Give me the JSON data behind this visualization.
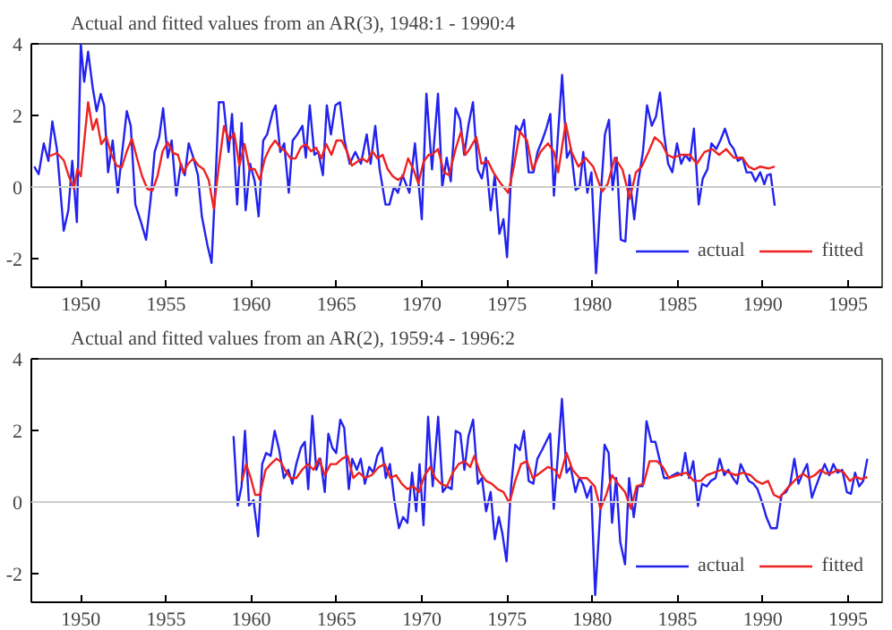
{
  "chart_data": [
    {
      "type": "line",
      "title": "Actual and fitted values from an AR(3), 1948:1 - 1990:4",
      "xlim": [
        1947.1,
        1997
      ],
      "ylim": [
        -2.8,
        4
      ],
      "xticks": [
        1950,
        1955,
        1960,
        1965,
        1970,
        1975,
        1980,
        1985,
        1990,
        1995
      ],
      "yticks": [
        -2,
        0,
        2,
        4
      ],
      "legend": "bottom right",
      "ref_lines": [
        {
          "axis": "y",
          "value": 0,
          "color": "#cccccc"
        }
      ],
      "series": [
        {
          "name": "actual",
          "color": "#2222ee",
          "x": [
            1947.27,
            1947.53,
            1947.83,
            1948.1,
            1948.33,
            1948.6,
            1949.0,
            1949.27,
            1949.5,
            1949.77,
            1950.0,
            1950.2,
            1950.43,
            1950.7,
            1950.93,
            1951.17,
            1951.37,
            1951.6,
            1951.87,
            1952.17,
            1952.43,
            1952.7,
            1952.93,
            1953.2,
            1953.53,
            1953.83,
            1954.1,
            1954.33,
            1954.6,
            1954.83,
            1955.1,
            1955.33,
            1955.6,
            1955.87,
            1956.1,
            1956.33,
            1956.6,
            1956.87,
            1957.1,
            1957.43,
            1957.67,
            1957.87,
            1958.1,
            1958.37,
            1958.67,
            1958.87,
            1959.17,
            1959.43,
            1959.67,
            1959.93,
            1960.2,
            1960.43,
            1960.7,
            1960.93,
            1961.27,
            1961.43,
            1961.7,
            1961.93,
            1962.2,
            1962.43,
            1962.7,
            1963.0,
            1963.2,
            1963.43,
            1963.7,
            1963.93,
            1964.2,
            1964.43,
            1964.67,
            1964.93,
            1965.2,
            1965.47,
            1965.77,
            1966.1,
            1966.43,
            1966.77,
            1967.0,
            1967.27,
            1967.53,
            1967.87,
            1968.1,
            1968.37,
            1968.6,
            1968.87,
            1969.27,
            1969.6,
            1970.0,
            1970.27,
            1970.6,
            1970.95,
            1971.2,
            1971.46,
            1971.7,
            1971.98,
            1972.25,
            1972.49,
            1972.73,
            1973.0,
            1973.28,
            1973.52,
            1973.76,
            1974.04,
            1974.28,
            1974.55,
            1974.79,
            1975.0,
            1975.24,
            1975.52,
            1975.76,
            1976.0,
            1976.27,
            1976.55,
            1976.79,
            1977.06,
            1977.3,
            1977.54,
            1977.75,
            1977.99,
            1978.23,
            1978.51,
            1978.75,
            1979.02,
            1979.26,
            1979.47,
            1979.71,
            1979.95,
            1980.22,
            1980.46,
            1980.74,
            1980.98,
            1981.19,
            1981.43,
            1981.67,
            1981.94,
            1982.18,
            1982.46,
            1982.7,
            1982.97,
            1983.21,
            1983.49,
            1983.73,
            1983.97,
            1984.21,
            1984.45,
            1984.69,
            1984.97,
            1985.21,
            1985.45,
            1985.72,
            1985.96,
            1986.24,
            1986.48,
            1986.75,
            1986.99,
            1987.27,
            1987.51,
            1987.78,
            1988.06,
            1988.3,
            1988.54,
            1988.81,
            1989.05,
            1989.33,
            1989.57,
            1989.85,
            1990.09,
            1990.26,
            1990.46,
            1990.7
          ],
          "values": [
            0.57,
            0.36,
            1.22,
            0.73,
            1.83,
            1.06,
            -1.22,
            -0.65,
            0.73,
            -0.98,
            4.0,
            2.94,
            3.78,
            2.77,
            2.12,
            2.6,
            2.28,
            0.41,
            1.3,
            -0.16,
            0.98,
            2.12,
            1.71,
            -0.49,
            -0.98,
            -1.47,
            -0.33,
            0.98,
            1.39,
            2.2,
            0.82,
            1.3,
            -0.24,
            0.65,
            0.33,
            1.22,
            0.82,
            0.33,
            -0.82,
            -1.63,
            -2.12,
            -0.16,
            2.37,
            2.37,
            0.98,
            2.04,
            -0.49,
            1.79,
            -0.65,
            0.65,
            0.16,
            -0.82,
            1.3,
            1.47,
            2.12,
            2.28,
            0.98,
            1.22,
            -0.16,
            1.3,
            1.47,
            1.71,
            0.82,
            2.28,
            0.9,
            0.98,
            0.33,
            2.28,
            1.47,
            2.28,
            2.37,
            1.3,
            0.65,
            0.98,
            0.65,
            1.47,
            0.65,
            1.71,
            0.49,
            -0.49,
            -0.49,
            0,
            -0.16,
            0.33,
            -0.16,
            1.22,
            -0.9,
            2.61,
            0.49,
            2.61,
            0,
            0.82,
            0.16,
            2.2,
            1.88,
            0.9,
            1.71,
            2.37,
            0.49,
            0.24,
            0.82,
            -0.65,
            0.33,
            -1.31,
            -0.9,
            -1.96,
            0.33,
            1.71,
            1.55,
            1.88,
            0.41,
            0.41,
            0.98,
            1.3,
            1.63,
            2.04,
            -0.24,
            1.47,
            3.13,
            0.82,
            1.06,
            -0.08,
            0,
            0.98,
            -0.16,
            0.41,
            -2.41,
            -0.49,
            1.47,
            1.88,
            -0.08,
            0.82,
            -1.47,
            -1.52,
            0.33,
            -0.9,
            0.16,
            0.98,
            2.28,
            1.71,
            1.96,
            2.64,
            1.47,
            0.65,
            0.41,
            1.22,
            0.65,
            0.9,
            0.73,
            1.63,
            -0.49,
            0.24,
            0.49,
            1.22,
            1.06,
            1.3,
            1.63,
            1.22,
            1.06,
            0.73,
            0.82,
            0.41,
            0.41,
            0.16,
            0.41,
            0.08,
            0.33,
            0.36,
            -0.52
          ]
        },
        {
          "name": "fitted",
          "color": "#ee2222",
          "x": [
            1948.1,
            1948.6,
            1949.0,
            1949.3,
            1949.6,
            1949.8,
            1950.0,
            1950.43,
            1950.7,
            1950.93,
            1951.2,
            1951.5,
            1951.8,
            1952.1,
            1952.4,
            1952.7,
            1953.0,
            1953.3,
            1953.6,
            1953.9,
            1954.2,
            1954.5,
            1954.8,
            1955.1,
            1955.4,
            1955.7,
            1956.0,
            1956.3,
            1956.6,
            1956.9,
            1957.2,
            1957.5,
            1957.8,
            1958.1,
            1958.4,
            1958.7,
            1959.0,
            1959.3,
            1959.6,
            1959.9,
            1960.2,
            1960.5,
            1960.8,
            1961.1,
            1961.4,
            1961.7,
            1962.0,
            1962.3,
            1962.6,
            1962.9,
            1963.2,
            1963.5,
            1963.8,
            1964.1,
            1964.4,
            1964.7,
            1965.0,
            1965.3,
            1965.6,
            1965.9,
            1966.2,
            1966.5,
            1966.8,
            1967.1,
            1967.4,
            1967.7,
            1968.0,
            1968.3,
            1968.6,
            1968.9,
            1969.2,
            1969.5,
            1969.8,
            1970.1,
            1970.4,
            1970.6,
            1970.95,
            1971.3,
            1971.6,
            1971.98,
            1972.3,
            1972.56,
            1972.8,
            1973.2,
            1973.5,
            1973.87,
            1974.2,
            1974.66,
            1975.07,
            1975.4,
            1975.76,
            1976.17,
            1976.5,
            1976.96,
            1977.4,
            1977.75,
            1978.0,
            1978.44,
            1978.78,
            1979.19,
            1979.6,
            1980.05,
            1980.57,
            1980.9,
            1981.32,
            1981.77,
            1982.2,
            1982.56,
            1982.9,
            1983.3,
            1983.66,
            1984.07,
            1984.4,
            1984.76,
            1985.2,
            1985.72,
            1986.13,
            1986.58,
            1987.03,
            1987.44,
            1987.85,
            1988.3,
            1988.81,
            1989.16,
            1989.5,
            1989.85,
            1990.36,
            1990.7
          ],
          "values": [
            0.85,
            0.95,
            0.75,
            0.3,
            -0.05,
            0.5,
            0.3,
            2.37,
            1.6,
            1.9,
            1.2,
            1.4,
            0.9,
            0.6,
            0.55,
            1.0,
            1.35,
            0.8,
            0.3,
            -0.05,
            -0.1,
            0.3,
            1.0,
            1.25,
            0.95,
            0.9,
            0.4,
            0.65,
            0.8,
            0.6,
            0.5,
            0.2,
            -0.6,
            0.6,
            1.7,
            1.3,
            1.5,
            0.6,
            1.2,
            0.5,
            0.5,
            0.2,
            0.8,
            1.1,
            1.3,
            1.1,
            1.0,
            0.8,
            0.8,
            1.1,
            1.2,
            1.0,
            1.1,
            0.8,
            1.2,
            0.9,
            1.3,
            1.3,
            1.0,
            0.6,
            0.7,
            0.8,
            0.7,
            1.0,
            0.8,
            0.9,
            0.5,
            0.3,
            0.2,
            0.3,
            0.8,
            0.5,
            0.1,
            0.7,
            0.9,
            0.9,
            1.06,
            0.41,
            0.33,
            1.06,
            1.55,
            0.9,
            1.06,
            1.39,
            0.65,
            0.73,
            0.41,
            0.08,
            -0.16,
            0.57,
            1.55,
            1.3,
            0.49,
            0.98,
            1.22,
            0.98,
            0.41,
            1.79,
            0.98,
            0.57,
            0.82,
            0.57,
            -0.13,
            0.08,
            0.82,
            0.49,
            -0.33,
            0.41,
            0.57,
            0.98,
            1.39,
            1.22,
            0.9,
            0.82,
            0.9,
            0.9,
            0.65,
            0.98,
            1.06,
            0.9,
            1.06,
            0.82,
            0.82,
            0.57,
            0.49,
            0.57,
            0.52,
            0.57
          ]
        }
      ]
    },
    {
      "type": "line",
      "title": "Actual and fitted values from an AR(2), 1959:4 - 1996:2",
      "xlim": [
        1947.1,
        1997
      ],
      "ylim": [
        -2.8,
        4
      ],
      "xticks": [
        1950,
        1955,
        1960,
        1965,
        1970,
        1975,
        1980,
        1985,
        1990,
        1995
      ],
      "yticks": [
        -2,
        0,
        2,
        4
      ],
      "legend": "bottom right",
      "ref_lines": [
        {
          "axis": "y",
          "value": 0,
          "color": "#cccccc"
        }
      ],
      "series": [
        {
          "name": "actual",
          "color": "#2222ee",
          "x": [
            1958.96,
            1959.2,
            1959.43,
            1959.63,
            1959.87,
            1960.13,
            1960.4,
            1960.64,
            1960.87,
            1961.14,
            1961.37,
            1961.64,
            1961.91,
            1962.17,
            1962.41,
            1962.64,
            1962.91,
            1963.14,
            1963.34,
            1963.58,
            1963.81,
            1964.05,
            1964.31,
            1964.52,
            1964.75,
            1964.98,
            1965.22,
            1965.45,
            1965.72,
            1965.92,
            1966.19,
            1966.42,
            1966.66,
            1966.92,
            1967.16,
            1967.39,
            1967.66,
            1967.89,
            1968.13,
            1968.39,
            1968.66,
            1968.9,
            1969.16,
            1969.43,
            1969.67,
            1969.87,
            1970.1,
            1970.37,
            1970.64,
            1970.96,
            1971.23,
            1971.47,
            1971.75,
            1971.99,
            1972.26,
            1972.5,
            1972.74,
            1973.01,
            1973.29,
            1973.53,
            1973.77,
            1974.04,
            1974.28,
            1974.52,
            1974.73,
            1974.97,
            1975.24,
            1975.48,
            1975.75,
            1975.99,
            1976.27,
            1976.54,
            1976.78,
            1977.05,
            1977.29,
            1977.53,
            1977.74,
            1977.98,
            1978.22,
            1978.49,
            1978.73,
            1979.01,
            1979.25,
            1979.45,
            1979.69,
            1979.93,
            1980.17,
            1980.45,
            1980.72,
            1980.96,
            1981.16,
            1981.4,
            1981.64,
            1981.92,
            1982.16,
            1982.43,
            1982.67,
            1982.95,
            1983.18,
            1983.46,
            1983.7,
            1983.97,
            1984.21,
            1984.49,
            1984.73,
            1985.0,
            1985.24,
            1985.45,
            1985.68,
            1985.92,
            1986.2,
            1986.44,
            1986.71,
            1986.95,
            1987.23,
            1987.47,
            1987.74,
            1987.98,
            1988.25,
            1988.49,
            1988.7,
            1988.94,
            1989.18,
            1989.45,
            1989.69,
            1989.97,
            1990.21,
            1990.48,
            1990.82,
            1991.1,
            1991.37,
            1991.61,
            1991.85,
            1992.09,
            1992.36,
            1992.6,
            1992.88,
            1993.12,
            1993.36,
            1993.63,
            1993.9,
            1994.14,
            1994.38,
            1994.66,
            1994.93,
            1995.17,
            1995.41,
            1995.65,
            1995.89,
            1996.13
          ],
          "values": [
            1.84,
            -0.1,
            0.44,
            1.99,
            -0.1,
            0.05,
            -0.96,
            1.06,
            1.37,
            1.29,
            1.99,
            1.45,
            0.67,
            0.9,
            0.51,
            1.06,
            1.52,
            1.68,
            0.36,
            2.41,
            0.9,
            1.21,
            0.28,
            1.91,
            1.52,
            1.37,
            2.3,
            2.07,
            0.36,
            1.21,
            0.9,
            1.21,
            0.51,
            0.98,
            0.82,
            1.29,
            1.52,
            0.67,
            1.06,
            0.05,
            -0.73,
            -0.42,
            -0.58,
            0.82,
            -0.26,
            1.06,
            -0.65,
            2.38,
            0.44,
            2.38,
            0.28,
            0.44,
            0.36,
            1.99,
            1.91,
            0.9,
            1.84,
            2.3,
            0.51,
            0.67,
            -0.26,
            0.28,
            -1.04,
            -0.42,
            -0.89,
            -1.66,
            0.44,
            1.6,
            1.45,
            1.99,
            0.59,
            0.51,
            1.21,
            1.45,
            1.68,
            1.91,
            -0.19,
            1.29,
            2.88,
            0.82,
            0.98,
            0.28,
            0.67,
            0.51,
            0.12,
            0.44,
            -2.6,
            -0.42,
            1.6,
            1.37,
            -0.58,
            0.67,
            -1.12,
            -1.74,
            0.67,
            -0.42,
            0.44,
            0.44,
            2.26,
            1.68,
            1.68,
            1.14,
            0.67,
            0.67,
            0.75,
            0.82,
            0.75,
            1.37,
            0.67,
            1.14,
            -0.11,
            0.51,
            0.44,
            0.59,
            0.67,
            1.21,
            0.75,
            0.9,
            0.67,
            0.51,
            1.06,
            0.82,
            0.59,
            0.51,
            0.36,
            -0.03,
            -0.42,
            -0.73,
            -0.73,
            0.2,
            0.28,
            0.51,
            1.21,
            0.51,
            0.82,
            1.06,
            0.12,
            0.44,
            0.75,
            1.06,
            0.75,
            1.06,
            0.82,
            0.9,
            0.28,
            0.23,
            0.82,
            0.44,
            0.59,
            1.21
          ]
        },
        {
          "name": "fitted",
          "color": "#ee2222",
          "x": [
            1959.46,
            1959.7,
            1959.97,
            1960.23,
            1960.5,
            1960.84,
            1961.14,
            1961.47,
            1961.7,
            1961.97,
            1962.31,
            1962.64,
            1962.98,
            1963.31,
            1963.65,
            1963.98,
            1964.31,
            1964.65,
            1964.98,
            1965.32,
            1965.65,
            1965.99,
            1966.32,
            1966.66,
            1967.06,
            1967.49,
            1967.83,
            1968.16,
            1968.49,
            1968.83,
            1969.16,
            1969.5,
            1969.83,
            1970.17,
            1970.5,
            1970.79,
            1971.13,
            1971.47,
            1971.82,
            1972.16,
            1972.5,
            1972.84,
            1973.08,
            1973.42,
            1973.77,
            1974.11,
            1974.45,
            1974.79,
            1975.14,
            1975.48,
            1975.82,
            1976.16,
            1976.51,
            1976.95,
            1977.4,
            1977.81,
            1978.08,
            1978.49,
            1978.84,
            1979.25,
            1979.69,
            1980.14,
            1980.48,
            1980.82,
            1981.16,
            1981.51,
            1981.92,
            1982.26,
            1982.6,
            1983.01,
            1983.36,
            1983.8,
            1984.14,
            1984.49,
            1985.0,
            1985.51,
            1985.96,
            1986.37,
            1986.71,
            1987.12,
            1987.57,
            1988.01,
            1988.42,
            1988.84,
            1989.28,
            1989.62,
            1989.97,
            1990.31,
            1990.65,
            1990.99,
            1991.34,
            1991.68,
            1992.02,
            1992.36,
            1992.71,
            1993.05,
            1993.39,
            1993.73,
            1994.08,
            1994.42,
            1994.76,
            1995.1,
            1995.45,
            1995.79,
            1996.13
          ],
          "values": [
            0.59,
            1.06,
            0.67,
            0.2,
            0.2,
            0.9,
            1.06,
            1.21,
            1.14,
            0.9,
            0.67,
            0.67,
            0.9,
            1.06,
            0.9,
            1.21,
            0.75,
            1.06,
            1.06,
            1.21,
            1.29,
            0.67,
            0.82,
            0.67,
            0.75,
            0.98,
            1.06,
            0.67,
            0.75,
            0.51,
            0.36,
            0.44,
            0.28,
            0.75,
            0.98,
            0.67,
            0.51,
            0.44,
            0.82,
            1.06,
            1.14,
            0.98,
            1.29,
            0.82,
            0.59,
            0.51,
            0.36,
            0.28,
            -0.03,
            0.59,
            1.06,
            1.14,
            0.67,
            0.82,
            0.98,
            0.9,
            0.67,
            1.37,
            0.9,
            0.67,
            0.67,
            0.44,
            -0.19,
            0.2,
            0.75,
            0.51,
            0.28,
            -0.19,
            0.44,
            0.51,
            1.14,
            1.14,
            0.98,
            0.67,
            0.75,
            0.82,
            0.59,
            0.59,
            0.75,
            0.82,
            0.9,
            0.82,
            0.75,
            0.82,
            0.75,
            0.59,
            0.51,
            0.59,
            0.2,
            0.12,
            0.33,
            0.51,
            0.67,
            0.79,
            0.67,
            0.75,
            0.9,
            0.79,
            0.82,
            0.9,
            0.82,
            0.59,
            0.7,
            0.64,
            0.7
          ]
        }
      ]
    }
  ]
}
